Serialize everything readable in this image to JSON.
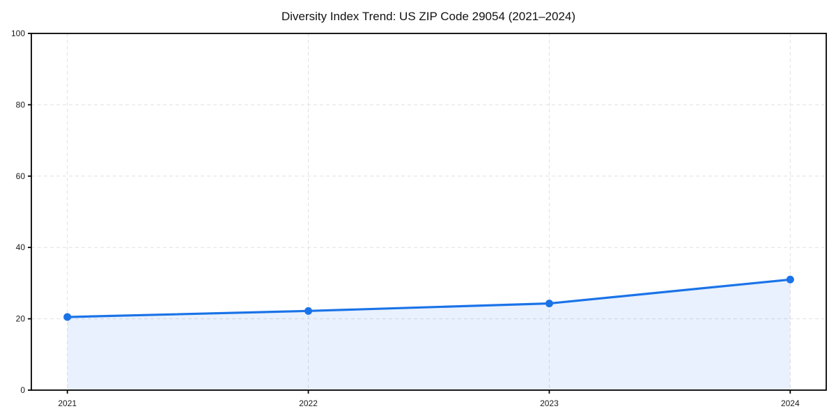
{
  "page": {
    "background": "#ffffff"
  },
  "chart_data": {
    "type": "line",
    "title": "Diversity Index Trend: US ZIP Code 29054 (2021–2024)",
    "x": [
      "2021",
      "2022",
      "2023",
      "2024"
    ],
    "series": [
      {
        "name": "Diversity Index",
        "values": [
          20.5,
          22.2,
          24.3,
          31.0
        ]
      }
    ],
    "xlabel": "",
    "ylabel": "",
    "ylim": [
      0,
      100
    ],
    "yticks": [
      0,
      20,
      40,
      60,
      80,
      100
    ],
    "grid": true,
    "grid_style": "dashed",
    "legend": "none",
    "area_fill": true,
    "marker": "circle",
    "colors": {
      "line": "#1A73E8",
      "marker": "#1A73E8",
      "fill": "rgba(26,115,232,0.10)",
      "grid": "#E0E0E0",
      "axis": "#000000",
      "text": "#1A1A1A"
    }
  }
}
